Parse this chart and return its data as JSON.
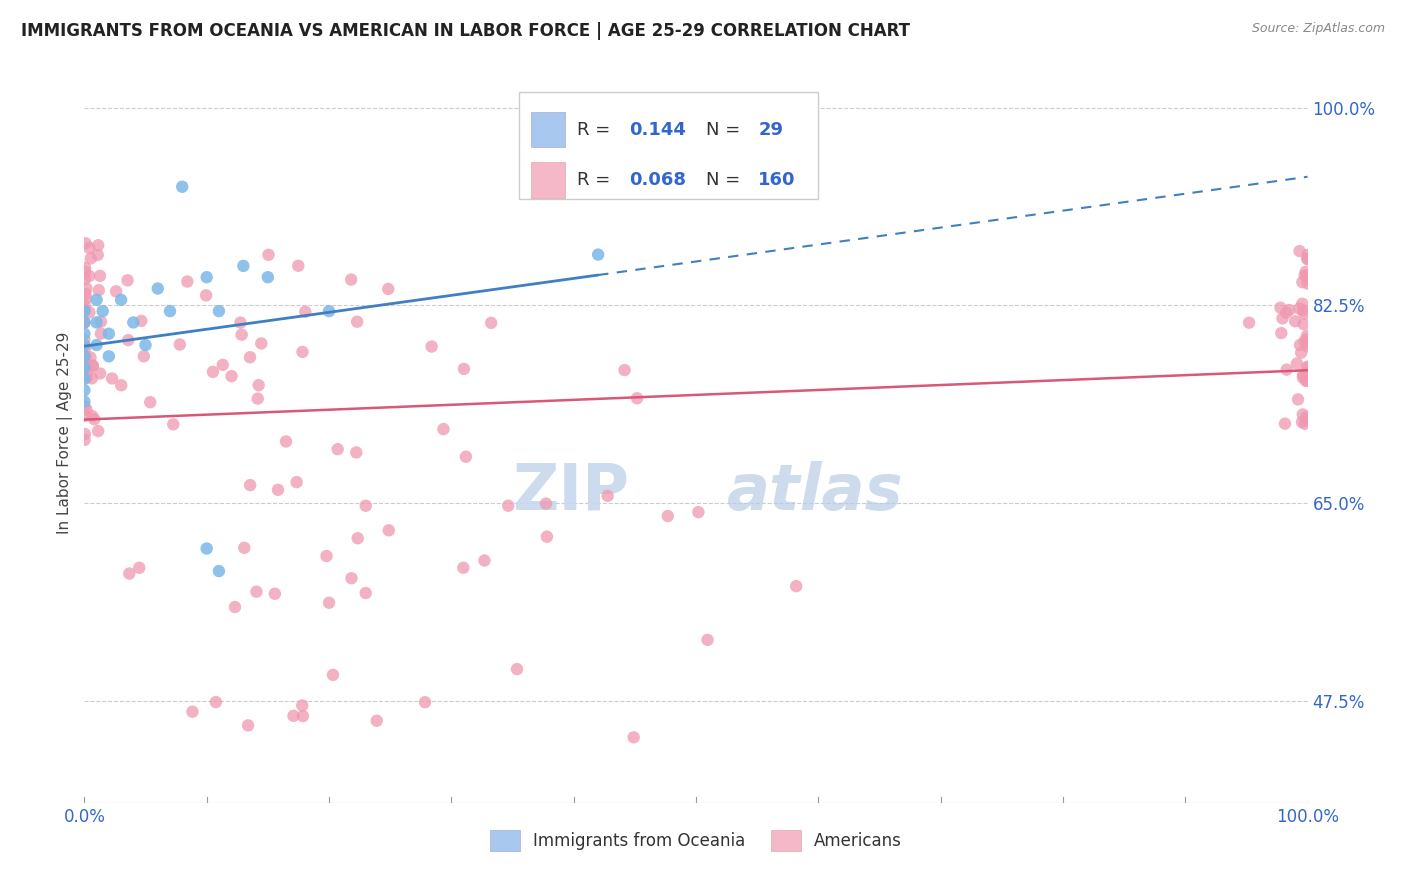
{
  "title": "IMMIGRANTS FROM OCEANIA VS AMERICAN IN LABOR FORCE | AGE 25-29 CORRELATION CHART",
  "source": "Source: ZipAtlas.com",
  "ylabel": "In Labor Force | Age 25-29",
  "xmin": 0.0,
  "xmax": 1.0,
  "ymin": 0.385,
  "ymax": 1.04,
  "ytick_positions": [
    0.475,
    0.65,
    0.825,
    1.0
  ],
  "ytick_labels": [
    "47.5%",
    "65.0%",
    "82.5%",
    "100.0%"
  ],
  "grid_yticks": [
    0.475,
    0.65,
    0.825,
    1.0
  ],
  "oceania_color": "#a8c8f0",
  "american_color": "#f5b8c8",
  "oceania_scatter_color": "#7ab8e8",
  "american_scatter_color": "#f098b0",
  "trendline_oceania_color": "#4080c0",
  "trendline_american_color": "#d85878",
  "watermark_color": "#d0dff0",
  "background_color": "#ffffff",
  "grid_color": "#cccccc",
  "legend_r1": "0.144",
  "legend_n1": "29",
  "legend_r2": "0.068",
  "legend_n2": "160"
}
